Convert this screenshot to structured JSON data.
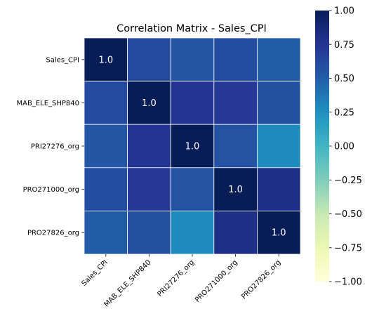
{
  "chart_data": {
    "type": "heatmap",
    "title": "Correlation Matrix - Sales_CPI",
    "row_labels": [
      "Sales_CPI",
      "MAB_ELE_SHP840",
      "PRI27276_org",
      "PRO271000_org",
      "PRO27826_org"
    ],
    "col_labels": [
      "Sales_CPI",
      "MAB_ELE_SHP840",
      "PRI27276_org",
      "PRO271000_org",
      "PRO27826_org"
    ],
    "values": [
      [
        1.0,
        0.62,
        0.55,
        0.6,
        0.52
      ],
      [
        0.62,
        1.0,
        0.76,
        0.72,
        0.58
      ],
      [
        0.55,
        0.76,
        1.0,
        0.57,
        0.28
      ],
      [
        0.6,
        0.72,
        0.57,
        1.0,
        0.8
      ],
      [
        0.52,
        0.58,
        0.28,
        0.8,
        1.0
      ]
    ],
    "annotations": [
      {
        "row": 0,
        "col": 0,
        "text": "1.0"
      },
      {
        "row": 1,
        "col": 1,
        "text": "1.0"
      },
      {
        "row": 2,
        "col": 2,
        "text": "1.0"
      },
      {
        "row": 3,
        "col": 3,
        "text": "1.0"
      },
      {
        "row": 4,
        "col": 4,
        "text": "1.0"
      }
    ],
    "colorbar": {
      "colormap": "YlGnBu",
      "vmin": -1.0,
      "vmax": 1.0,
      "ticks": [
        "1.00",
        "0.75",
        "0.50",
        "0.25",
        "0.00",
        "−0.25",
        "−0.50",
        "−0.75",
        "−1.00"
      ]
    },
    "grid_lines": true
  }
}
